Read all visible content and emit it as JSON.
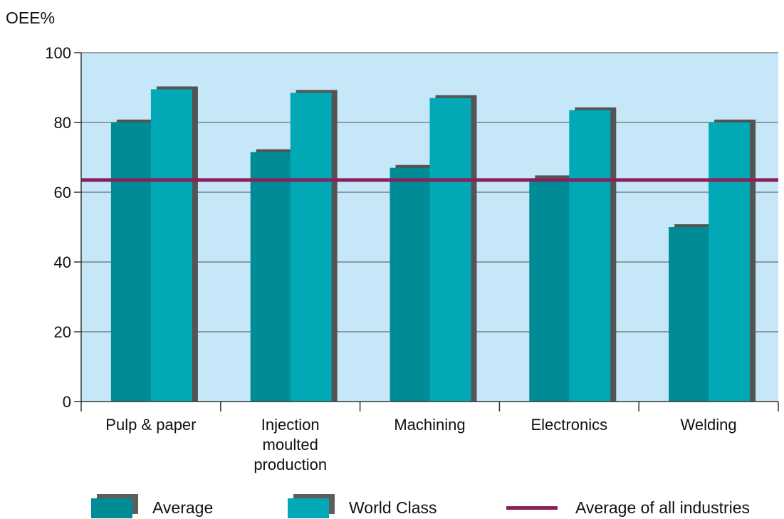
{
  "chart_data": {
    "type": "bar",
    "ylabel": "OEE%",
    "xlabel": "",
    "ylim": [
      0,
      100
    ],
    "yticks": [
      "0",
      "20",
      "40",
      "60",
      "80",
      "100"
    ],
    "grid": true,
    "categories": [
      [
        "Pulp & paper"
      ],
      [
        "Injection",
        "moulted",
        "production"
      ],
      [
        "Machining"
      ],
      [
        "Electronics"
      ],
      [
        "Welding"
      ]
    ],
    "series": [
      {
        "name": "Average",
        "color": "#008c94",
        "values": [
          80,
          71.5,
          67,
          64,
          50
        ]
      },
      {
        "name": "World Class",
        "color": "#00a9b5",
        "values": [
          89.5,
          88.5,
          87,
          83.5,
          80
        ]
      }
    ],
    "reference_line": {
      "name": "Average of all industries",
      "value": 63.5,
      "color": "#8b1f5b"
    },
    "plot_background": "#c6e7f7",
    "legend_position": "bottom"
  }
}
